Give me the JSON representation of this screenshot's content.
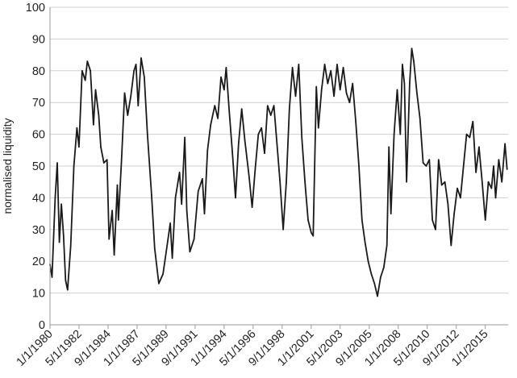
{
  "chart_data": {
    "type": "line",
    "title": "",
    "xlabel": "",
    "ylabel": "normalised liquidity",
    "ylim": [
      0,
      100
    ],
    "yticks": [
      0,
      10,
      20,
      30,
      40,
      50,
      60,
      70,
      80,
      90,
      100
    ],
    "xlim": [
      "1980-01-01",
      "2016-11-01"
    ],
    "xticks": [
      {
        "label": "1/1/1980",
        "date": "1980-01-01"
      },
      {
        "label": "5/1/1982",
        "date": "1982-05-01"
      },
      {
        "label": "9/1/1984",
        "date": "1984-09-01"
      },
      {
        "label": "1/1/1987",
        "date": "1987-01-01"
      },
      {
        "label": "5/1/1989",
        "date": "1989-05-01"
      },
      {
        "label": "9/1/1991",
        "date": "1991-09-01"
      },
      {
        "label": "1/1/1994",
        "date": "1994-01-01"
      },
      {
        "label": "5/1/1996",
        "date": "1996-05-01"
      },
      {
        "label": "9/1/1998",
        "date": "1998-09-01"
      },
      {
        "label": "1/1/2001",
        "date": "2001-01-01"
      },
      {
        "label": "5/1/2003",
        "date": "2003-05-01"
      },
      {
        "label": "9/1/2005",
        "date": "2005-09-01"
      },
      {
        "label": "1/1/2008",
        "date": "2008-01-01"
      },
      {
        "label": "5/1/2010",
        "date": "2010-05-01"
      },
      {
        "label": "9/1/2012",
        "date": "2012-09-01"
      },
      {
        "label": "1/1/2015",
        "date": "2015-01-01"
      }
    ],
    "grid": {
      "horizontal": true,
      "vertical": false
    },
    "legend": "none",
    "series": [
      {
        "color": "#1a1a1a",
        "points": [
          [
            "1980-01-01",
            19
          ],
          [
            "1980-03-01",
            15
          ],
          [
            "1980-06-01",
            40
          ],
          [
            "1980-08-01",
            51
          ],
          [
            "1980-10-01",
            26
          ],
          [
            "1980-12-01",
            38
          ],
          [
            "1981-02-01",
            28
          ],
          [
            "1981-04-01",
            14
          ],
          [
            "1981-06-01",
            11
          ],
          [
            "1981-09-01",
            25
          ],
          [
            "1981-12-01",
            50
          ],
          [
            "1982-03-01",
            62
          ],
          [
            "1982-05-01",
            56
          ],
          [
            "1982-08-01",
            80
          ],
          [
            "1982-11-01",
            77
          ],
          [
            "1983-01-01",
            83
          ],
          [
            "1983-04-01",
            80
          ],
          [
            "1983-07-01",
            63
          ],
          [
            "1983-09-01",
            74
          ],
          [
            "1983-12-01",
            66
          ],
          [
            "1984-02-01",
            56
          ],
          [
            "1984-05-01",
            51
          ],
          [
            "1984-08-01",
            52
          ],
          [
            "1984-10-01",
            27
          ],
          [
            "1985-01-01",
            36
          ],
          [
            "1985-03-01",
            22
          ],
          [
            "1985-06-01",
            44
          ],
          [
            "1985-07-01",
            33
          ],
          [
            "1985-10-01",
            52
          ],
          [
            "1986-01-01",
            73
          ],
          [
            "1986-04-01",
            66
          ],
          [
            "1986-07-01",
            72
          ],
          [
            "1986-10-01",
            80
          ],
          [
            "1986-12-01",
            82
          ],
          [
            "1987-02-01",
            69
          ],
          [
            "1987-05-01",
            84
          ],
          [
            "1987-08-01",
            78
          ],
          [
            "1987-11-01",
            60
          ],
          [
            "1988-03-01",
            41
          ],
          [
            "1988-06-01",
            24
          ],
          [
            "1988-10-01",
            13
          ],
          [
            "1989-02-01",
            16
          ],
          [
            "1989-06-01",
            25
          ],
          [
            "1989-09-01",
            32
          ],
          [
            "1989-11-01",
            21
          ],
          [
            "1990-02-01",
            40
          ],
          [
            "1990-06-01",
            48
          ],
          [
            "1990-08-01",
            38
          ],
          [
            "1990-11-01",
            59
          ],
          [
            "1991-01-01",
            36
          ],
          [
            "1991-04-01",
            23
          ],
          [
            "1991-08-01",
            27
          ],
          [
            "1991-12-01",
            42
          ],
          [
            "1992-04-01",
            46
          ],
          [
            "1992-06-01",
            35
          ],
          [
            "1992-09-01",
            55
          ],
          [
            "1992-12-01",
            63
          ],
          [
            "1993-04-01",
            69
          ],
          [
            "1993-07-01",
            65
          ],
          [
            "1993-10-01",
            78
          ],
          [
            "1994-01-01",
            74
          ],
          [
            "1994-03-01",
            81
          ],
          [
            "1994-06-01",
            67
          ],
          [
            "1994-09-01",
            54
          ],
          [
            "1994-12-01",
            40
          ],
          [
            "1995-03-01",
            57
          ],
          [
            "1995-06-01",
            68
          ],
          [
            "1995-09-01",
            58
          ],
          [
            "1996-01-01",
            47
          ],
          [
            "1996-04-01",
            37
          ],
          [
            "1996-07-01",
            49
          ],
          [
            "1996-10-01",
            60
          ],
          [
            "1997-01-01",
            62
          ],
          [
            "1997-04-01",
            54
          ],
          [
            "1997-07-01",
            69
          ],
          [
            "1997-10-01",
            66
          ],
          [
            "1998-01-01",
            69
          ],
          [
            "1998-04-01",
            57
          ],
          [
            "1998-07-01",
            45
          ],
          [
            "1998-10-01",
            30
          ],
          [
            "1999-01-01",
            45
          ],
          [
            "1999-04-01",
            68
          ],
          [
            "1999-07-01",
            81
          ],
          [
            "1999-10-01",
            72
          ],
          [
            "2000-01-01",
            82
          ],
          [
            "2000-04-01",
            59
          ],
          [
            "2000-07-01",
            45
          ],
          [
            "2000-10-01",
            33
          ],
          [
            "2001-01-01",
            29
          ],
          [
            "2001-03-01",
            28
          ],
          [
            "2001-06-01",
            75
          ],
          [
            "2001-08-01",
            62
          ],
          [
            "2001-11-01",
            74
          ],
          [
            "2002-02-01",
            82
          ],
          [
            "2002-05-01",
            76
          ],
          [
            "2002-08-01",
            80
          ],
          [
            "2002-11-01",
            72
          ],
          [
            "2003-02-01",
            82
          ],
          [
            "2003-05-01",
            74
          ],
          [
            "2003-08-01",
            81
          ],
          [
            "2003-11-01",
            73
          ],
          [
            "2004-02-01",
            70
          ],
          [
            "2004-05-01",
            76
          ],
          [
            "2004-08-01",
            64
          ],
          [
            "2004-11-01",
            50
          ],
          [
            "2005-02-01",
            33
          ],
          [
            "2005-05-01",
            26
          ],
          [
            "2005-08-01",
            20
          ],
          [
            "2005-11-01",
            16
          ],
          [
            "2006-02-01",
            13
          ],
          [
            "2006-05-01",
            9
          ],
          [
            "2006-08-01",
            15
          ],
          [
            "2006-11-01",
            18
          ],
          [
            "2007-02-01",
            25
          ],
          [
            "2007-04-01",
            56
          ],
          [
            "2007-06-01",
            35
          ],
          [
            "2007-09-01",
            60
          ],
          [
            "2007-12-01",
            74
          ],
          [
            "2008-03-01",
            60
          ],
          [
            "2008-05-01",
            82
          ],
          [
            "2008-07-01",
            76
          ],
          [
            "2008-09-01",
            45
          ],
          [
            "2008-12-01",
            76
          ],
          [
            "2009-02-01",
            87
          ],
          [
            "2009-04-01",
            83
          ],
          [
            "2009-07-01",
            73
          ],
          [
            "2009-10-01",
            65
          ],
          [
            "2010-01-01",
            51
          ],
          [
            "2010-04-01",
            50
          ],
          [
            "2010-07-01",
            52
          ],
          [
            "2010-10-01",
            33
          ],
          [
            "2011-01-01",
            30
          ],
          [
            "2011-04-01",
            52
          ],
          [
            "2011-07-01",
            44
          ],
          [
            "2011-10-01",
            45
          ],
          [
            "2012-01-01",
            38
          ],
          [
            "2012-04-01",
            25
          ],
          [
            "2012-07-01",
            35
          ],
          [
            "2012-10-01",
            43
          ],
          [
            "2013-01-01",
            40
          ],
          [
            "2013-04-01",
            50
          ],
          [
            "2013-07-01",
            60
          ],
          [
            "2013-10-01",
            59
          ],
          [
            "2014-01-01",
            64
          ],
          [
            "2014-04-01",
            48
          ],
          [
            "2014-07-01",
            56
          ],
          [
            "2014-10-01",
            45
          ],
          [
            "2015-01-01",
            33
          ],
          [
            "2015-04-01",
            45
          ],
          [
            "2015-07-01",
            43
          ],
          [
            "2015-09-01",
            50
          ],
          [
            "2015-11-01",
            40
          ],
          [
            "2016-02-01",
            52
          ],
          [
            "2016-05-01",
            45
          ],
          [
            "2016-08-01",
            57
          ],
          [
            "2016-10-01",
            49
          ]
        ]
      }
    ]
  }
}
